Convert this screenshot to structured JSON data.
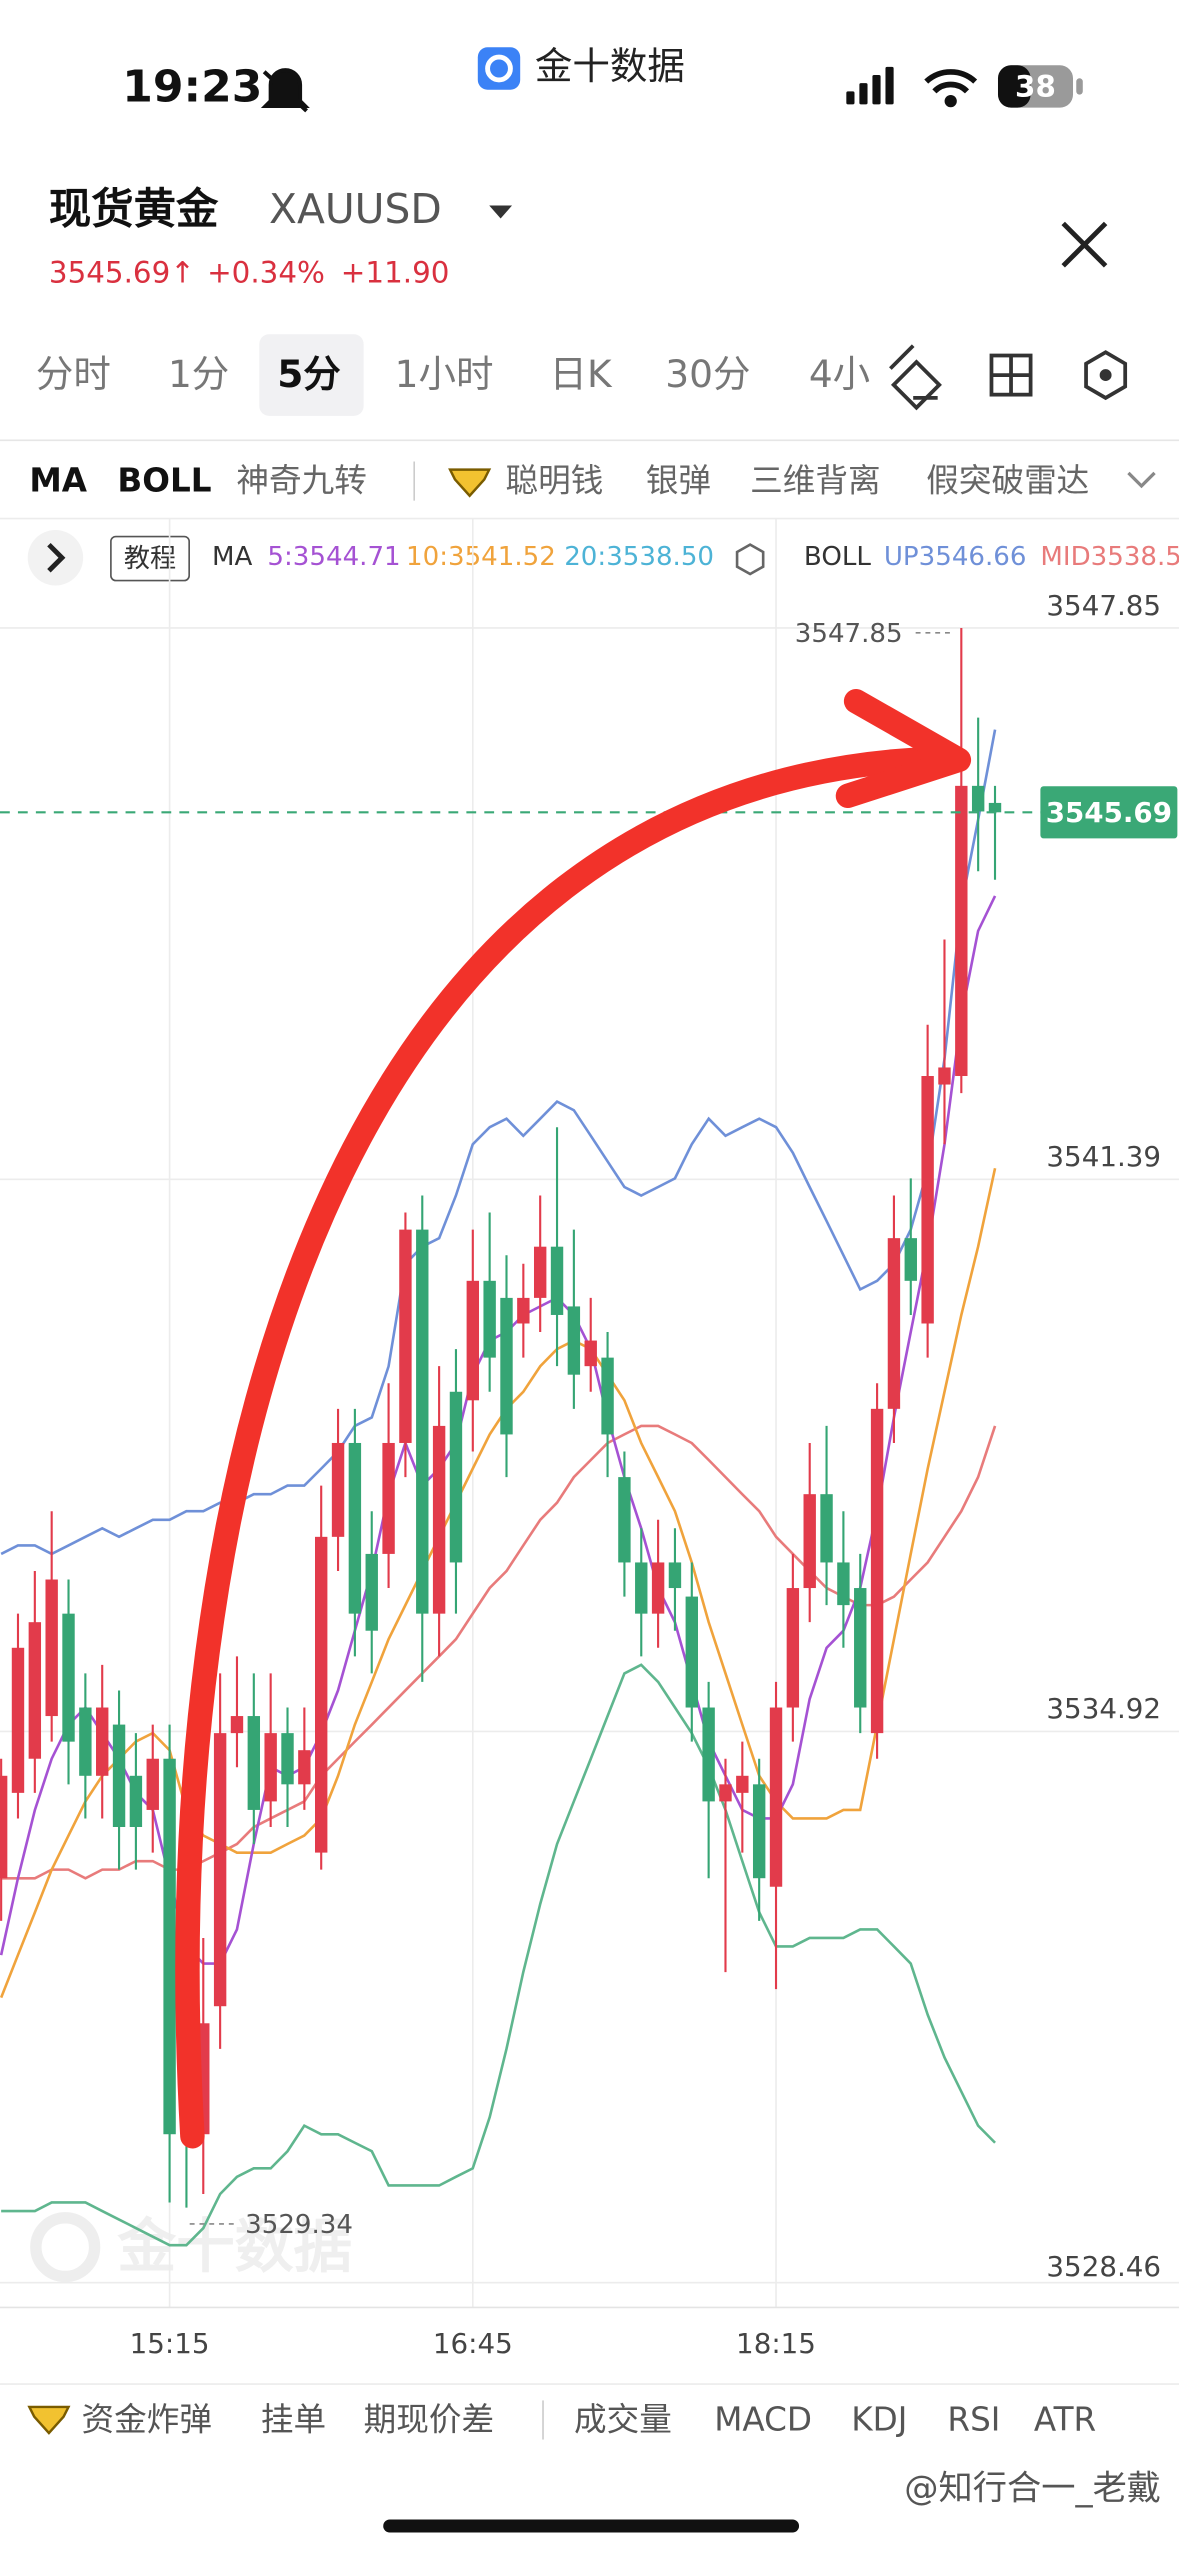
{
  "status_bar": {
    "time": "19:23",
    "app": "金十数据",
    "battery": "38"
  },
  "header": {
    "name": "现货黄金",
    "symbol": "XAUUSD",
    "price": "3545.69↑",
    "change_pct": "+0.34%",
    "change": "+11.90"
  },
  "tabs": [
    "分时",
    "1分",
    "5分",
    "1小时",
    "日K",
    "30分",
    "4小"
  ],
  "indicators": [
    "MA",
    "BOLL",
    "神奇九转",
    "聪明钱",
    "银弹",
    "三维背离",
    "假突破雷达"
  ],
  "legend": {
    "tutorial": "教程",
    "ma": "MA",
    "ma5": "5:3544.71",
    "ma10": "10:3541.52",
    "ma20": "20:3538.50",
    "boll": "BOLL",
    "up": "UP3546.66",
    "mid": "MID3538.5"
  },
  "watermark_logo": "金十数据",
  "chart_data": {
    "type": "candlestick",
    "categories": [
      null,
      null,
      null,
      null,
      null,
      null,
      null,
      null,
      null,
      null,
      "15:15",
      null,
      null,
      null,
      null,
      null,
      null,
      null,
      null,
      null,
      null,
      null,
      null,
      null,
      null,
      null,
      null,
      null,
      "16:45",
      null,
      null,
      null,
      null,
      null,
      null,
      null,
      null,
      null,
      null,
      null,
      null,
      null,
      null,
      null,
      null,
      null,
      "18:15",
      null,
      null,
      null,
      null,
      null,
      null,
      null,
      null,
      null,
      null,
      null,
      null,
      null
    ],
    "open": [
      3533.2,
      3534.2,
      3534.6,
      3535.1,
      3536.3,
      3535.2,
      3534.4,
      3535.0,
      3534.4,
      3534.0,
      3534.6,
      3531.7,
      3530.2,
      3531.7,
      3534.9,
      3535.1,
      3534.1,
      3534.9,
      3534.3,
      3533.5,
      3537.2,
      3538.3,
      3537.0,
      3537.0,
      3538.3,
      3540.8,
      3536.3,
      3538.9,
      3538.8,
      3540.2,
      3540.0,
      3539.7,
      3540.0,
      3540.6,
      3539.9,
      3539.2,
      3539.3,
      3537.9,
      3536.9,
      3536.3,
      3536.9,
      3536.5,
      3535.2,
      3534.1,
      3534.2,
      3534.3,
      3533.1,
      3535.2,
      3536.6,
      3537.7,
      3536.9,
      3536.6,
      3534.9,
      3538.7,
      3540.7,
      3539.7,
      3542.5,
      3542.6,
      3546.0,
      3545.8
    ],
    "high": [
      3534.6,
      3536.3,
      3536.8,
      3537.5,
      3536.7,
      3535.6,
      3535.7,
      3535.4,
      3534.9,
      3535.0,
      3535.0,
      3532.0,
      3532.5,
      3535.6,
      3535.8,
      3535.6,
      3535.6,
      3535.2,
      3535.2,
      3537.8,
      3538.7,
      3538.7,
      3537.5,
      3539.0,
      3541.0,
      3541.2,
      3539.2,
      3539.4,
      3540.8,
      3541.0,
      3540.5,
      3540.4,
      3541.2,
      3542.0,
      3540.8,
      3540.0,
      3539.6,
      3538.2,
      3537.3,
      3537.4,
      3537.3,
      3536.9,
      3535.5,
      3534.6,
      3534.8,
      3534.6,
      3535.5,
      3537.0,
      3538.3,
      3538.5,
      3537.5,
      3537.0,
      3539.0,
      3541.2,
      3541.4,
      3543.2,
      3544.2,
      3547.85,
      3546.8,
      3546.0
    ],
    "low": [
      3532.7,
      3533.9,
      3534.2,
      3534.8,
      3534.3,
      3533.9,
      3533.9,
      3533.3,
      3533.3,
      3533.5,
      3529.4,
      3529.34,
      3529.5,
      3531.2,
      3534.5,
      3533.6,
      3533.8,
      3533.8,
      3534.0,
      3533.3,
      3536.8,
      3535.8,
      3535.6,
      3536.6,
      3537.9,
      3535.5,
      3535.8,
      3536.3,
      3538.2,
      3538.9,
      3537.9,
      3539.3,
      3539.6,
      3539.2,
      3538.7,
      3538.9,
      3537.9,
      3536.5,
      3535.8,
      3535.9,
      3536.1,
      3534.8,
      3533.2,
      3532.1,
      3533.5,
      3532.7,
      3531.9,
      3534.8,
      3536.2,
      3536.4,
      3535.9,
      3534.9,
      3534.6,
      3538.3,
      3539.8,
      3539.3,
      3541.8,
      3542.4,
      3545.0,
      3544.9
    ],
    "close": [
      3534.4,
      3535.9,
      3536.2,
      3536.7,
      3534.8,
      3534.4,
      3535.2,
      3533.8,
      3533.8,
      3534.6,
      3530.2,
      3530.2,
      3531.5,
      3534.9,
      3535.1,
      3534.0,
      3534.9,
      3534.3,
      3534.7,
      3537.2,
      3538.3,
      3536.3,
      3536.1,
      3538.3,
      3540.8,
      3536.3,
      3538.5,
      3536.9,
      3540.2,
      3539.3,
      3538.4,
      3540.0,
      3540.6,
      3539.8,
      3539.1,
      3539.5,
      3538.4,
      3536.9,
      3536.3,
      3536.9,
      3536.6,
      3535.2,
      3534.1,
      3534.3,
      3534.4,
      3533.2,
      3535.2,
      3536.6,
      3537.7,
      3536.9,
      3536.4,
      3535.2,
      3538.7,
      3540.7,
      3540.2,
      3542.6,
      3542.7,
      3546.0,
      3545.7,
      3545.69
    ],
    "up_color": "#e23b4b",
    "down_color": "#35a574",
    "lines": [
      {
        "color": "#6f90d8",
        "values": [
          3537.0,
          3537.1,
          3537.1,
          3537.0,
          3537.1,
          3537.2,
          3537.3,
          3537.2,
          3537.3,
          3537.4,
          3537.4,
          3537.5,
          3537.5,
          3537.6,
          3537.6,
          3537.7,
          3537.7,
          3537.8,
          3537.8,
          3538.0,
          3538.2,
          3538.5,
          3538.6,
          3539.2,
          3540.4,
          3540.6,
          3540.7,
          3541.2,
          3541.8,
          3542.0,
          3542.1,
          3541.9,
          3542.1,
          3542.3,
          3542.2,
          3541.9,
          3541.6,
          3541.3,
          3541.2,
          3541.3,
          3541.4,
          3541.8,
          3542.1,
          3541.9,
          3542.0,
          3542.1,
          3542.0,
          3541.7,
          3541.3,
          3540.9,
          3540.5,
          3540.1,
          3540.2,
          3540.4,
          3540.8,
          3541.5,
          3542.8,
          3544.6,
          3545.6,
          3546.66
        ]
      },
      {
        "color": "#e87b7b",
        "values": [
          3533.2,
          3533.2,
          3533.2,
          3533.3,
          3533.3,
          3533.2,
          3533.3,
          3533.3,
          3533.4,
          3533.4,
          3533.3,
          3533.3,
          3533.4,
          3533.5,
          3533.6,
          3533.8,
          3533.9,
          3534.0,
          3534.1,
          3534.4,
          3534.6,
          3534.8,
          3535.0,
          3535.2,
          3535.4,
          3535.6,
          3535.8,
          3536.0,
          3536.3,
          3536.6,
          3536.8,
          3537.1,
          3537.4,
          3537.6,
          3537.9,
          3538.1,
          3538.3,
          3538.4,
          3538.5,
          3538.5,
          3538.4,
          3538.3,
          3538.1,
          3537.9,
          3537.7,
          3537.5,
          3537.2,
          3537.0,
          3536.8,
          3536.6,
          3536.5,
          3536.4,
          3536.4,
          3536.5,
          3536.7,
          3536.9,
          3537.2,
          3537.5,
          3537.9,
          3538.5
        ]
      },
      {
        "color": "#5fb68e",
        "values": [
          3529.3,
          3529.3,
          3529.3,
          3529.4,
          3529.4,
          3529.4,
          3529.3,
          3529.2,
          3529.1,
          3529.0,
          3528.9,
          3528.9,
          3529.1,
          3529.5,
          3529.7,
          3529.8,
          3529.8,
          3530.0,
          3530.3,
          3530.2,
          3530.2,
          3530.1,
          3530.0,
          3529.6,
          3529.6,
          3529.6,
          3529.6,
          3529.7,
          3529.8,
          3530.4,
          3531.2,
          3532.1,
          3532.9,
          3533.6,
          3534.1,
          3534.6,
          3535.1,
          3535.6,
          3535.7,
          3535.5,
          3535.2,
          3534.9,
          3534.5,
          3534.0,
          3533.4,
          3532.8,
          3532.4,
          3532.4,
          3532.5,
          3532.5,
          3532.5,
          3532.6,
          3532.6,
          3532.4,
          3532.2,
          3531.6,
          3531.1,
          3530.7,
          3530.3,
          3530.1
        ]
      },
      {
        "color": "#f0a33c",
        "values": [
          3531.8,
          3532.3,
          3532.8,
          3533.3,
          3533.7,
          3534.1,
          3534.4,
          3534.6,
          3534.8,
          3534.9,
          3534.7,
          3534.0,
          3533.7,
          3533.6,
          3533.5,
          3533.5,
          3533.5,
          3533.6,
          3533.7,
          3533.9,
          3534.4,
          3535.0,
          3535.5,
          3536.0,
          3536.4,
          3536.8,
          3537.2,
          3537.6,
          3538.0,
          3538.4,
          3538.7,
          3538.9,
          3539.2,
          3539.4,
          3539.5,
          3539.4,
          3539.1,
          3538.8,
          3538.3,
          3537.9,
          3537.5,
          3536.9,
          3536.2,
          3535.6,
          3535.0,
          3534.4,
          3534.1,
          3533.9,
          3533.9,
          3533.9,
          3534.0,
          3534.0,
          3535.0,
          3536.0,
          3537.0,
          3538.0,
          3538.9,
          3539.8,
          3540.6,
          3541.52
        ]
      },
      {
        "color": "#a552d3",
        "values": [
          3532.3,
          3533.2,
          3534.0,
          3534.6,
          3535.0,
          3535.2,
          3534.9,
          3534.6,
          3534.2,
          3534.0,
          3533.2,
          3532.4,
          3532.2,
          3532.2,
          3532.6,
          3533.6,
          3534.5,
          3534.4,
          3534.5,
          3534.9,
          3535.4,
          3536.1,
          3536.8,
          3537.7,
          3538.3,
          3537.8,
          3538.0,
          3538.3,
          3539.1,
          3539.5,
          3539.6,
          3539.8,
          3539.9,
          3540.0,
          3539.8,
          3539.4,
          3538.6,
          3537.9,
          3537.3,
          3536.6,
          3536.2,
          3535.5,
          3534.8,
          3534.4,
          3534.0,
          3533.9,
          3533.9,
          3534.3,
          3535.3,
          3535.9,
          3536.1,
          3536.6,
          3537.5,
          3538.6,
          3539.6,
          3540.6,
          3541.8,
          3543.3,
          3544.3,
          3544.71
        ]
      }
    ],
    "ylim": [
      3528.17,
      3548.1
    ],
    "yticks": [
      3528.46,
      3534.92,
      3541.39,
      3547.85
    ],
    "grid": true,
    "last_price": 3545.69,
    "high_marker": 3547.85,
    "low_marker": 3529.34
  },
  "bottom_tabs": [
    "资金炸弹",
    "挂单",
    "期现价差",
    "成交量",
    "MACD",
    "KDJ",
    "RSI",
    "ATR"
  ],
  "credit": "@知行合一_老戴"
}
